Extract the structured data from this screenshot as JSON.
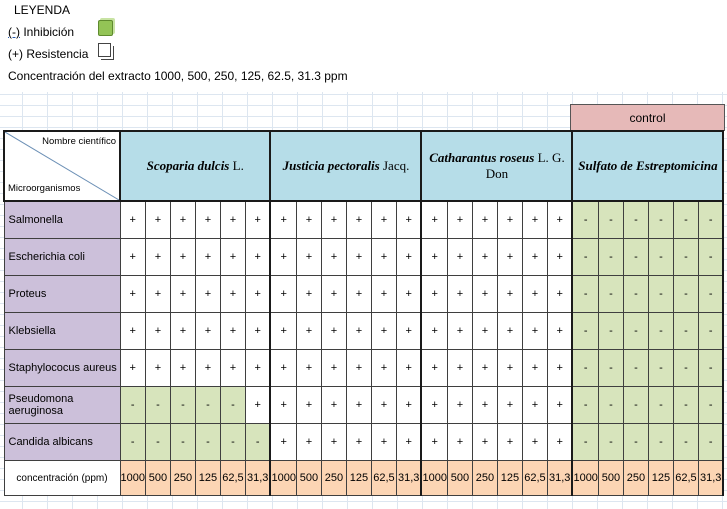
{
  "legend": {
    "title": "LEYENDA",
    "inhibition_symbol": "(-)",
    "inhibition_label": "Inhibición",
    "resistance_symbol": "(+)",
    "resistance_label": "Resistencia",
    "concentration_note": "Concentración del extracto 1000, 500, 250, 125, 62.5, 31.3 ppm"
  },
  "table": {
    "control_label": "control",
    "corner_top": "Nombre científico",
    "corner_bottom": "Microorganismos",
    "groups": [
      {
        "name_italic": "Scoparia dulcis",
        "author": " L."
      },
      {
        "name_italic": "Justicia pectoralis",
        "author": " Jacq."
      },
      {
        "name_italic": "Catharantus roseus",
        "author": " L. G. Don"
      },
      {
        "name_italic": "Sulfato de Estreptomicina",
        "author": ""
      }
    ],
    "rows": [
      {
        "organism": "Salmonella",
        "values": [
          "+",
          "+",
          "+",
          "+",
          "+",
          "+",
          "+",
          "+",
          "+",
          "+",
          "+",
          "+",
          "+",
          "+",
          "+",
          "+",
          "+",
          "+",
          "-",
          "-",
          "-",
          "-",
          "-",
          "-"
        ]
      },
      {
        "organism": "Escherichia coli",
        "values": [
          "+",
          "+",
          "+",
          "+",
          "+",
          "+",
          "+",
          "+",
          "+",
          "+",
          "+",
          "+",
          "+",
          "+",
          "+",
          "+",
          "+",
          "+",
          "-",
          "-",
          "-",
          "-",
          "-",
          "-"
        ]
      },
      {
        "organism": "Proteus",
        "values": [
          "+",
          "+",
          "+",
          "+",
          "+",
          "+",
          "+",
          "+",
          "+",
          "+",
          "+",
          "+",
          "+",
          "+",
          "+",
          "+",
          "+",
          "+",
          "-",
          "-",
          "-",
          "-",
          "-",
          "-"
        ]
      },
      {
        "organism": "Klebsiella",
        "values": [
          "+",
          "+",
          "+",
          "+",
          "+",
          "+",
          "+",
          "+",
          "+",
          "+",
          "+",
          "+",
          "+",
          "+",
          "+",
          "+",
          "+",
          "+",
          "-",
          "-",
          "-",
          "-",
          "-",
          "-"
        ]
      },
      {
        "organism": "Staphylococus  aureus",
        "values": [
          "+",
          "+",
          "+",
          "+",
          "+",
          "+",
          "+",
          "+",
          "+",
          "+",
          "+",
          "+",
          "+",
          "+",
          "+",
          "+",
          "+",
          "+",
          "-",
          "-",
          "-",
          "-",
          "-",
          "-"
        ]
      },
      {
        "organism": "Pseudomona aeruginosa",
        "values": [
          "-",
          "-",
          "-",
          "-",
          "-",
          "+",
          "+",
          "+",
          "+",
          "+",
          "+",
          "+",
          "+",
          "+",
          "+",
          "+",
          "+",
          "+",
          "-",
          "-",
          "-",
          "-",
          "-",
          "-"
        ]
      },
      {
        "organism": "Candida albicans",
        "values": [
          "-",
          "-",
          "-",
          "-",
          "-",
          "-",
          "+",
          "+",
          "+",
          "+",
          "+",
          "+",
          "+",
          "+",
          "+",
          "+",
          "+",
          "+",
          "-",
          "-",
          "-",
          "-",
          "-",
          "-"
        ]
      }
    ],
    "concentration_label": "concentración (ppm)",
    "concentrations": [
      "1000",
      "500",
      "250",
      "125",
      "62,5",
      "31,3",
      "1000",
      "500",
      "250",
      "125",
      "62,5",
      "31,3",
      "1000",
      "500",
      "250",
      "125",
      "62,5",
      "31,3",
      "1000",
      "500",
      "250",
      "125",
      "62,5",
      "31,3"
    ]
  }
}
